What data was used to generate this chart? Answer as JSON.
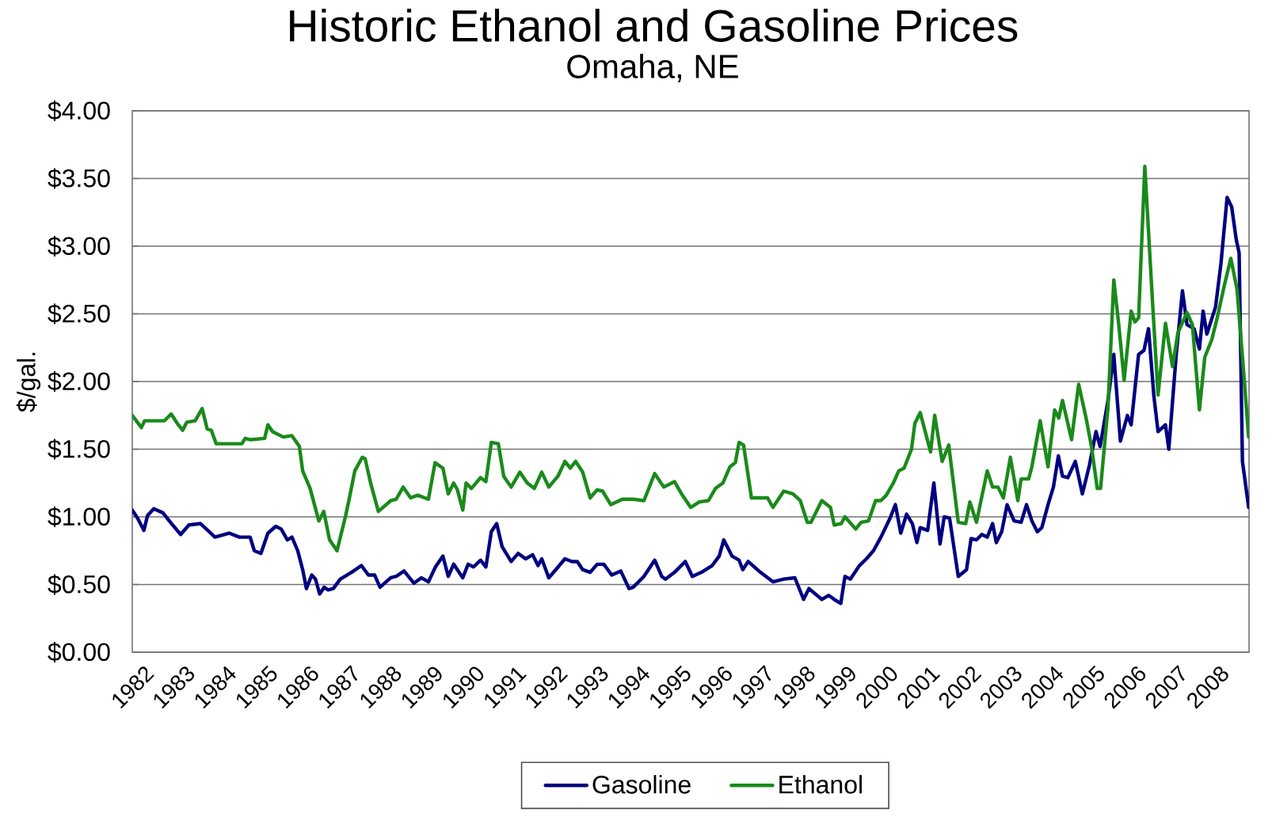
{
  "chart_data": {
    "type": "line",
    "title": "Historic Ethanol and Gasoline Prices",
    "subtitle": "Omaha, NE",
    "ylabel": "$/gal.",
    "xlim": [
      1982,
      2009
    ],
    "xticks": [
      1982,
      1983,
      1984,
      1985,
      1986,
      1987,
      1988,
      1989,
      1990,
      1991,
      1992,
      1993,
      1994,
      1995,
      1996,
      1997,
      1998,
      1999,
      2000,
      2001,
      2002,
      2003,
      2004,
      2005,
      2006,
      2007,
      2008
    ],
    "ylim": [
      0,
      4
    ],
    "yticks": [
      {
        "value": 0,
        "label": "$0.00"
      },
      {
        "value": 0.5,
        "label": "$0.50"
      },
      {
        "value": 1,
        "label": "$1.00"
      },
      {
        "value": 1.5,
        "label": "$1.50"
      },
      {
        "value": 2,
        "label": "$2.00"
      },
      {
        "value": 2.5,
        "label": "$2.50"
      },
      {
        "value": 3,
        "label": "$3.00"
      },
      {
        "value": 3.5,
        "label": "$3.50"
      },
      {
        "value": 4,
        "label": "$4.00"
      }
    ],
    "grid": "y",
    "legend": "bottom",
    "series": [
      {
        "name": "Gasoline",
        "color": "#000080",
        "x": [
          1982.0,
          1982.13,
          1982.28,
          1982.37,
          1982.52,
          1982.74,
          1982.95,
          1983.17,
          1983.37,
          1983.65,
          1984.0,
          1984.34,
          1984.59,
          1984.85,
          1984.95,
          1985.11,
          1985.28,
          1985.47,
          1985.6,
          1985.75,
          1985.86,
          1986.0,
          1986.12,
          1986.21,
          1986.34,
          1986.43,
          1986.53,
          1986.64,
          1986.73,
          1986.86,
          1987.03,
          1987.3,
          1987.54,
          1987.71,
          1987.86,
          1987.99,
          1988.25,
          1988.38,
          1988.57,
          1988.81,
          1988.99,
          1989.16,
          1989.33,
          1989.51,
          1989.64,
          1989.77,
          1989.99,
          1990.12,
          1990.25,
          1990.42,
          1990.55,
          1990.68,
          1990.81,
          1990.94,
          1991.16,
          1991.33,
          1991.51,
          1991.68,
          1991.81,
          1991.9,
          1992.07,
          1992.24,
          1992.46,
          1992.63,
          1992.76,
          1992.89,
          1993.07,
          1993.24,
          1993.4,
          1993.59,
          1993.81,
          1994.01,
          1994.11,
          1994.37,
          1994.63,
          1994.8,
          1994.89,
          1995.11,
          1995.37,
          1995.54,
          1995.76,
          1996.02,
          1996.19,
          1996.3,
          1996.5,
          1996.67,
          1996.76,
          1996.89,
          1997.15,
          1997.49,
          1997.75,
          1998.02,
          1998.23,
          1998.36,
          1998.67,
          1998.84,
          1998.97,
          1999.13,
          1999.23,
          1999.36,
          1999.58,
          1999.75,
          1999.92,
          2000.1,
          2000.32,
          2000.45,
          2000.58,
          2000.72,
          2000.86,
          2000.97,
          2001.05,
          2001.23,
          2001.38,
          2001.53,
          2001.63,
          2001.76,
          2001.97,
          2002.17,
          2002.28,
          2002.41,
          2002.54,
          2002.67,
          2002.8,
          2002.89,
          2003.02,
          2003.15,
          2003.32,
          2003.49,
          2003.62,
          2003.75,
          2003.88,
          2003.99,
          2004.14,
          2004.27,
          2004.39,
          2004.49,
          2004.62,
          2004.8,
          2004.97,
          2005.14,
          2005.3,
          2005.4,
          2005.59,
          2005.73,
          2005.89,
          2006.06,
          2006.15,
          2006.33,
          2006.46,
          2006.57,
          2006.7,
          2006.8,
          2006.98,
          2007.06,
          2007.24,
          2007.39,
          2007.5,
          2007.67,
          2007.8,
          2007.89,
          2007.98,
          2008.19,
          2008.32,
          2008.47,
          2008.58,
          2008.69,
          2008.76,
          2008.84,
          2008.99
        ],
        "values": [
          1.05,
          0.99,
          0.9,
          1.01,
          1.06,
          1.03,
          0.95,
          0.87,
          0.94,
          0.95,
          0.85,
          0.88,
          0.85,
          0.85,
          0.75,
          0.73,
          0.88,
          0.93,
          0.91,
          0.83,
          0.85,
          0.75,
          0.61,
          0.47,
          0.57,
          0.54,
          0.43,
          0.48,
          0.46,
          0.47,
          0.54,
          0.59,
          0.64,
          0.57,
          0.57,
          0.48,
          0.55,
          0.56,
          0.6,
          0.51,
          0.55,
          0.52,
          0.63,
          0.71,
          0.56,
          0.65,
          0.55,
          0.65,
          0.63,
          0.68,
          0.63,
          0.89,
          0.95,
          0.78,
          0.67,
          0.73,
          0.69,
          0.72,
          0.64,
          0.69,
          0.55,
          0.61,
          0.69,
          0.67,
          0.67,
          0.61,
          0.59,
          0.65,
          0.65,
          0.57,
          0.6,
          0.47,
          0.48,
          0.56,
          0.68,
          0.56,
          0.54,
          0.59,
          0.67,
          0.56,
          0.59,
          0.64,
          0.71,
          0.83,
          0.71,
          0.68,
          0.61,
          0.67,
          0.6,
          0.52,
          0.54,
          0.55,
          0.39,
          0.47,
          0.39,
          0.42,
          0.39,
          0.36,
          0.56,
          0.54,
          0.64,
          0.69,
          0.75,
          0.85,
          0.99,
          1.09,
          0.88,
          1.02,
          0.95,
          0.81,
          0.92,
          0.9,
          1.25,
          0.8,
          1.0,
          0.99,
          0.56,
          0.61,
          0.84,
          0.83,
          0.87,
          0.85,
          0.95,
          0.81,
          0.89,
          1.09,
          0.97,
          0.96,
          1.09,
          0.97,
          0.89,
          0.92,
          1.09,
          1.22,
          1.45,
          1.3,
          1.29,
          1.41,
          1.17,
          1.38,
          1.63,
          1.52,
          1.86,
          2.2,
          1.56,
          1.75,
          1.68,
          2.2,
          2.23,
          2.39,
          1.89,
          1.63,
          1.68,
          1.5,
          2.2,
          2.67,
          2.42,
          2.39,
          2.24,
          2.52,
          2.35,
          2.55,
          2.87,
          3.36,
          3.29,
          3.05,
          2.95,
          1.41,
          1.07
        ]
      },
      {
        "name": "Ethanol",
        "color": "#1a8a1a",
        "x": [
          1982.0,
          1982.22,
          1982.3,
          1982.78,
          1982.94,
          1983.09,
          1983.22,
          1983.32,
          1983.52,
          1983.69,
          1983.81,
          1983.91,
          1984.03,
          1984.65,
          1984.73,
          1984.86,
          1985.2,
          1985.28,
          1985.39,
          1985.65,
          1985.86,
          1986.04,
          1986.12,
          1986.3,
          1986.51,
          1986.63,
          1986.77,
          1986.95,
          1987.16,
          1987.25,
          1987.38,
          1987.56,
          1987.63,
          1987.77,
          1987.95,
          1988.25,
          1988.38,
          1988.55,
          1988.73,
          1988.9,
          1989.16,
          1989.32,
          1989.51,
          1989.64,
          1989.77,
          1989.86,
          1989.99,
          1990.07,
          1990.2,
          1990.42,
          1990.55,
          1990.68,
          1990.85,
          1990.98,
          1991.16,
          1991.37,
          1991.55,
          1991.72,
          1991.9,
          1992.07,
          1992.29,
          1992.46,
          1992.59,
          1992.72,
          1992.89,
          1993.07,
          1993.24,
          1993.37,
          1993.57,
          1993.85,
          1994.11,
          1994.37,
          1994.63,
          1994.85,
          1995.11,
          1995.28,
          1995.5,
          1995.71,
          1995.93,
          1996.1,
          1996.28,
          1996.45,
          1996.58,
          1996.67,
          1996.78,
          1996.97,
          1997.36,
          1997.49,
          1997.75,
          1997.97,
          1998.15,
          1998.32,
          1998.41,
          1998.67,
          1998.88,
          1998.97,
          1999.14,
          1999.23,
          1999.49,
          1999.62,
          1999.8,
          1999.97,
          2000.1,
          2000.23,
          2000.4,
          2000.53,
          2000.66,
          2000.84,
          2000.92,
          2001.05,
          2001.3,
          2001.4,
          2001.58,
          2001.74,
          2001.97,
          2002.15,
          2002.25,
          2002.41,
          2002.67,
          2002.8,
          2002.93,
          2003.06,
          2003.23,
          2003.41,
          2003.49,
          2003.67,
          2003.75,
          2003.95,
          2004.14,
          2004.3,
          2004.4,
          2004.49,
          2004.71,
          2004.88,
          2005.06,
          2005.19,
          2005.33,
          2005.41,
          2005.59,
          2005.73,
          2005.85,
          2005.98,
          2006.15,
          2006.24,
          2006.33,
          2006.48,
          2006.67,
          2006.8,
          2006.98,
          2007.15,
          2007.28,
          2007.5,
          2007.63,
          2007.8,
          2007.93,
          2008.1,
          2008.23,
          2008.41,
          2008.56,
          2008.71,
          2008.89,
          2008.99
        ],
        "values": [
          1.75,
          1.66,
          1.71,
          1.71,
          1.76,
          1.69,
          1.64,
          1.7,
          1.71,
          1.8,
          1.65,
          1.64,
          1.54,
          1.54,
          1.58,
          1.57,
          1.58,
          1.68,
          1.63,
          1.59,
          1.6,
          1.52,
          1.34,
          1.21,
          0.97,
          1.04,
          0.83,
          0.75,
          1.01,
          1.14,
          1.34,
          1.44,
          1.43,
          1.24,
          1.04,
          1.12,
          1.13,
          1.22,
          1.14,
          1.16,
          1.13,
          1.4,
          1.36,
          1.17,
          1.25,
          1.2,
          1.05,
          1.25,
          1.21,
          1.29,
          1.26,
          1.55,
          1.54,
          1.3,
          1.22,
          1.33,
          1.25,
          1.21,
          1.33,
          1.22,
          1.3,
          1.41,
          1.36,
          1.41,
          1.33,
          1.14,
          1.2,
          1.19,
          1.09,
          1.13,
          1.13,
          1.12,
          1.32,
          1.22,
          1.26,
          1.17,
          1.07,
          1.11,
          1.12,
          1.21,
          1.25,
          1.37,
          1.4,
          1.55,
          1.53,
          1.14,
          1.14,
          1.07,
          1.19,
          1.17,
          1.12,
          0.96,
          0.96,
          1.12,
          1.07,
          0.94,
          0.95,
          1.0,
          0.91,
          0.96,
          0.97,
          1.12,
          1.12,
          1.16,
          1.25,
          1.34,
          1.36,
          1.5,
          1.69,
          1.77,
          1.48,
          1.75,
          1.41,
          1.53,
          0.96,
          0.95,
          1.11,
          0.96,
          1.34,
          1.22,
          1.22,
          1.14,
          1.44,
          1.12,
          1.28,
          1.28,
          1.37,
          1.71,
          1.37,
          1.79,
          1.73,
          1.86,
          1.57,
          1.98,
          1.73,
          1.52,
          1.21,
          1.21,
          1.81,
          2.75,
          2.42,
          2.01,
          2.52,
          2.44,
          2.47,
          3.59,
          2.57,
          1.9,
          2.43,
          2.11,
          2.36,
          2.51,
          2.42,
          1.79,
          2.18,
          2.31,
          2.47,
          2.72,
          2.91,
          2.68,
          1.99,
          1.59
        ]
      }
    ]
  }
}
